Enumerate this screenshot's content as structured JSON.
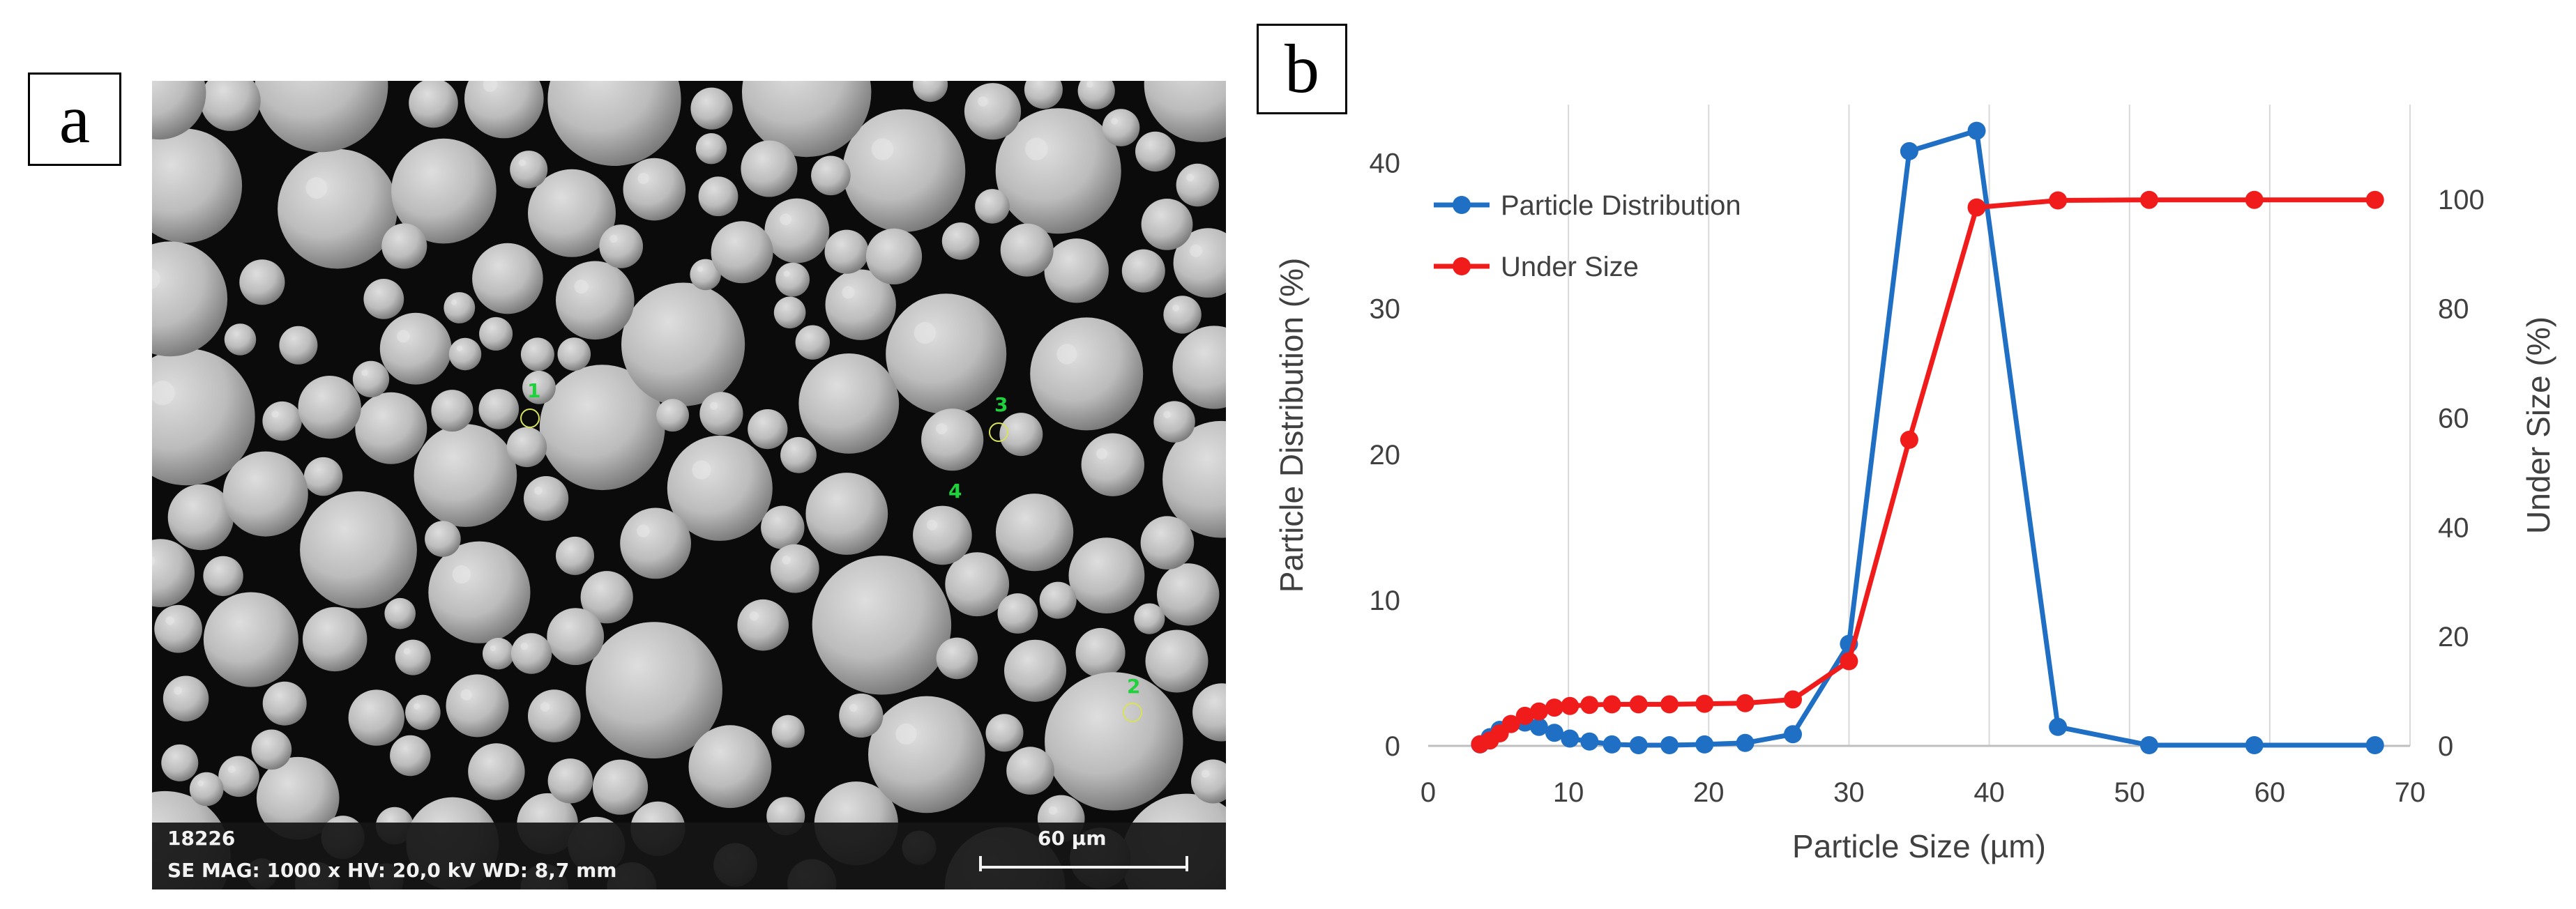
{
  "panel_labels": {
    "a": "a",
    "b": "b"
  },
  "sem_image": {
    "image_id": "18226",
    "parameters": "SE  MAG: 1000 x  HV: 20,0 kV  WD: 8,7 mm",
    "scale_bar_label": "60 µm",
    "markers": [
      "1",
      "2",
      "3",
      "4"
    ],
    "background_color": "#0b0b0b",
    "particle_color": "#c8c8c8"
  },
  "chart_data": {
    "type": "line",
    "title": "",
    "xlabel": "Particle Size (µm)",
    "ylabel": "Particle Distribution (%)",
    "y2label": "Under Size (%)",
    "xlim": [
      0,
      70
    ],
    "ylim": [
      0,
      44
    ],
    "y2lim": [
      0,
      117.33
    ],
    "xticks": [
      0,
      10,
      20,
      30,
      40,
      50,
      60,
      70
    ],
    "yticks": [
      0,
      10,
      20,
      30,
      40
    ],
    "y2ticks": [
      0,
      20,
      40,
      60,
      80,
      100
    ],
    "grid": "vertical",
    "legend_position": "top-left",
    "series": [
      {
        "name": "Particle Distribution",
        "axis": "left",
        "color": "#1f6fc5",
        "x": [
          3.7,
          4.4,
          5.1,
          5.9,
          6.9,
          7.9,
          9.0,
          10.1,
          11.5,
          13.1,
          15.0,
          17.2,
          19.7,
          22.6,
          26.0,
          30.0,
          34.3,
          39.1,
          44.9,
          51.4,
          58.9,
          67.5
        ],
        "y": [
          0.1,
          0.6,
          1.1,
          1.5,
          1.6,
          1.3,
          0.9,
          0.5,
          0.3,
          0.1,
          0.05,
          0.05,
          0.1,
          0.2,
          0.8,
          7.0,
          40.8,
          42.2,
          1.3,
          0.05,
          0.05,
          0.05
        ]
      },
      {
        "name": "Under Size",
        "axis": "right",
        "color": "#f01c1c",
        "x": [
          3.7,
          4.4,
          5.1,
          5.9,
          6.9,
          7.9,
          9.0,
          10.1,
          11.5,
          13.1,
          15.0,
          17.2,
          19.7,
          22.6,
          26.0,
          30.0,
          34.3,
          39.1,
          44.9,
          51.4,
          58.9,
          67.5
        ],
        "y": [
          0.3,
          1.0,
          2.3,
          4.0,
          5.5,
          6.3,
          7.0,
          7.3,
          7.5,
          7.6,
          7.6,
          7.6,
          7.7,
          7.8,
          8.5,
          15.5,
          56.0,
          98.5,
          99.8,
          99.9,
          99.9,
          99.9
        ]
      }
    ]
  }
}
